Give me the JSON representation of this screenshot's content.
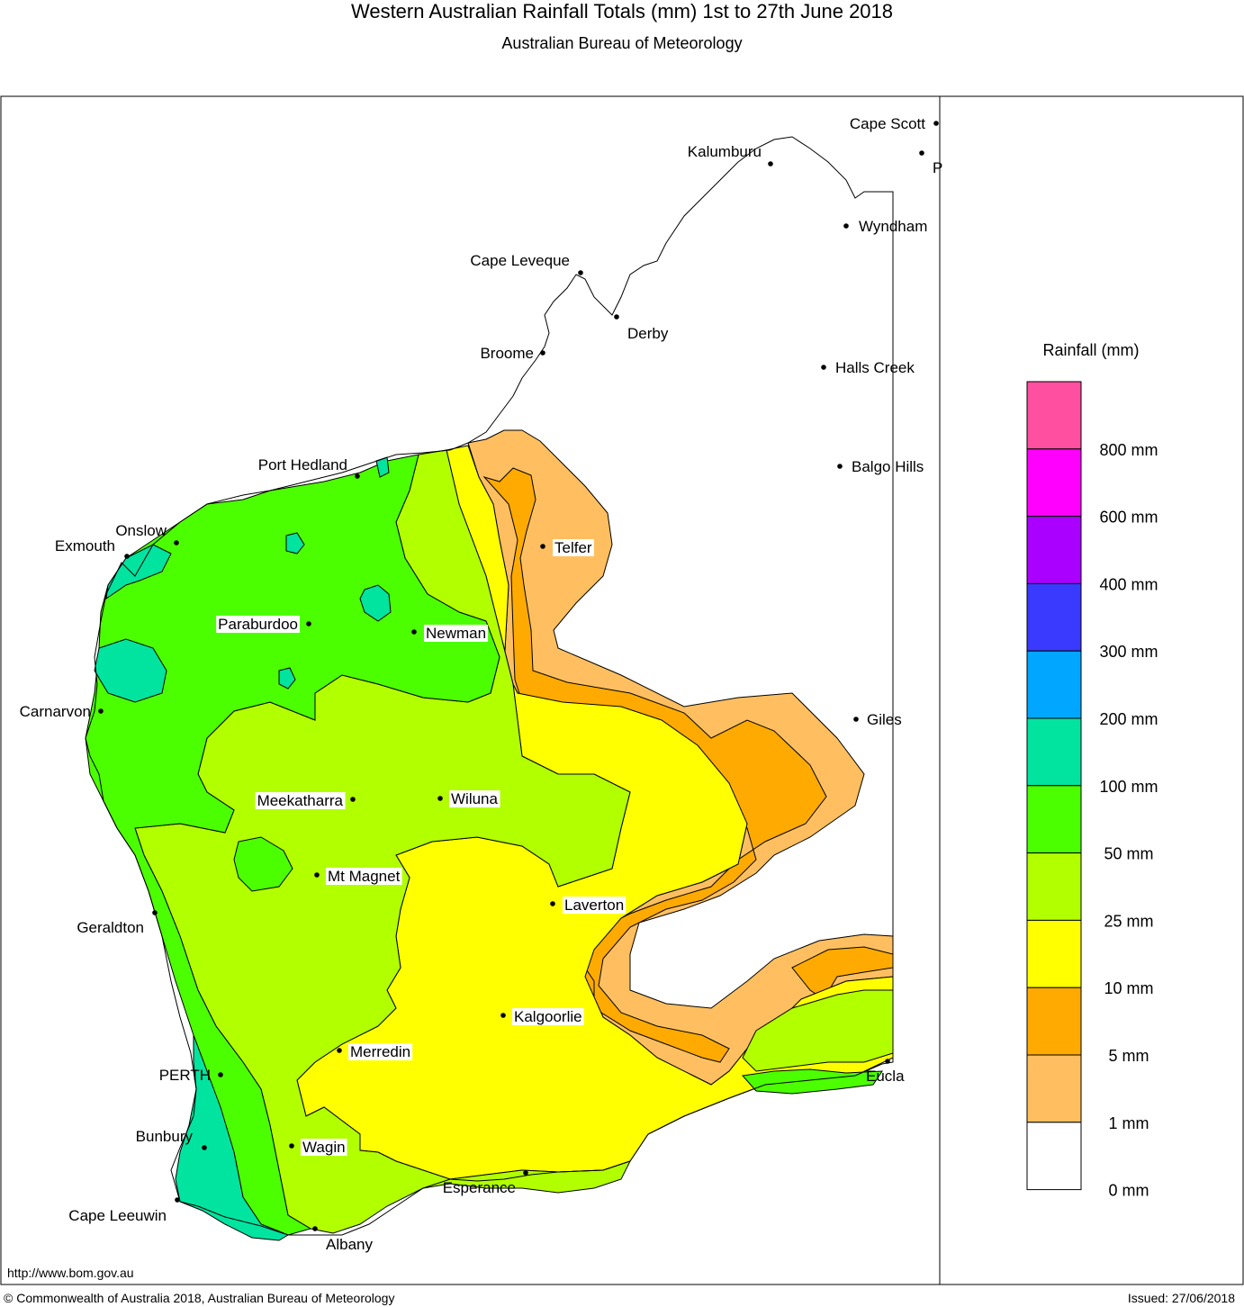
{
  "title": "Western Australian Rainfall Totals (mm) 1st to 27th June 2018",
  "subtitle": "Australian Bureau of Meteorology",
  "legend": {
    "title": "Rainfall (mm)",
    "bands": [
      {
        "color": "#ff4fa1",
        "label": "800 mm"
      },
      {
        "color": "#ff00ff",
        "label": "600 mm"
      },
      {
        "color": "#aa00ff",
        "label": "400 mm"
      },
      {
        "color": "#3a3aff",
        "label": "300 mm"
      },
      {
        "color": "#00a6ff",
        "label": "200 mm"
      },
      {
        "color": "#00e4a0",
        "label": "100 mm"
      },
      {
        "color": "#4cff00",
        "label": "50 mm"
      },
      {
        "color": "#b2ff00",
        "label": "25 mm"
      },
      {
        "color": "#ffff00",
        "label": "10 mm"
      },
      {
        "color": "#ffaa00",
        "label": "5 mm"
      },
      {
        "color": "#ffbf60",
        "label": "1 mm"
      },
      {
        "color": "#ffffff",
        "label": "0 mm"
      }
    ]
  },
  "places": [
    {
      "name": "Cape Scott",
      "boxed": false
    },
    {
      "name": "Kalumburu",
      "boxed": false
    },
    {
      "name": "Wyndham",
      "boxed": false
    },
    {
      "name": "Cape Leveque",
      "boxed": false
    },
    {
      "name": "Derby",
      "boxed": false
    },
    {
      "name": "Broome",
      "boxed": false
    },
    {
      "name": "Halls Creek",
      "boxed": false
    },
    {
      "name": "Balgo Hills",
      "boxed": false
    },
    {
      "name": "Port Hedland",
      "boxed": false
    },
    {
      "name": "Telfer",
      "boxed": true
    },
    {
      "name": "Onslow",
      "boxed": false
    },
    {
      "name": "Exmouth",
      "boxed": false
    },
    {
      "name": "Paraburdoo",
      "boxed": true
    },
    {
      "name": "Newman",
      "boxed": true
    },
    {
      "name": "Giles",
      "boxed": false
    },
    {
      "name": "Carnarvon",
      "boxed": false
    },
    {
      "name": "Meekatharra",
      "boxed": true
    },
    {
      "name": "Wiluna",
      "boxed": true
    },
    {
      "name": "Mt Magnet",
      "boxed": true
    },
    {
      "name": "Laverton",
      "boxed": true
    },
    {
      "name": "Geraldton",
      "boxed": false
    },
    {
      "name": "Kalgoorlie",
      "boxed": true
    },
    {
      "name": "Merredin",
      "boxed": true
    },
    {
      "name": "PERTH",
      "boxed": false
    },
    {
      "name": "Eucla",
      "boxed": false
    },
    {
      "name": "Bunbury",
      "boxed": false
    },
    {
      "name": "Wagin",
      "boxed": true
    },
    {
      "name": "Esperance",
      "boxed": false
    },
    {
      "name": "Cape Leeuwin",
      "boxed": false
    },
    {
      "name": "Albany",
      "boxed": false
    },
    {
      "name": "P",
      "boxed": false
    }
  ],
  "footer": {
    "url": "http://www.bom.gov.au",
    "copyright": "© Commonwealth of Australia 2018, Australian Bureau of Meteorology",
    "issued": "Issued: 27/06/2018"
  }
}
